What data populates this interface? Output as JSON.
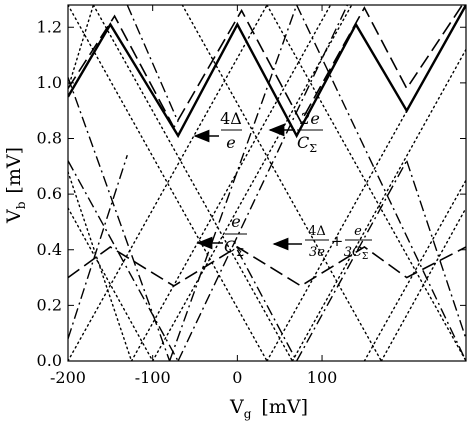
{
  "chart_data": {
    "type": "line",
    "xlabel": {
      "main": "V",
      "sub": "g",
      "unit": "[mV]"
    },
    "ylabel": {
      "main": "V",
      "sub": "b",
      "unit": "[mV]"
    },
    "xlim": [
      -200,
      270
    ],
    "ylim": [
      0.0,
      1.28
    ],
    "xticks": [
      -200,
      -100,
      0,
      100
    ],
    "xtick_labels": [
      "-200",
      "-100",
      "0",
      "100"
    ],
    "yticks": [
      0.0,
      0.2,
      0.4,
      0.6,
      0.8,
      1.0,
      1.2
    ],
    "ytick_labels": [
      "0.0",
      "0.2",
      "0.4",
      "0.6",
      "0.8",
      "1.0",
      "1.2"
    ],
    "grid": false,
    "series": [
      {
        "style": "solid",
        "color": "#000000",
        "width": 2.4,
        "x": [
          -200,
          -150,
          -70,
          0,
          70,
          140,
          200,
          270
        ],
        "y": [
          0.95,
          1.21,
          0.81,
          1.21,
          0.81,
          1.21,
          0.9,
          1.28
        ]
      },
      {
        "style": "dashed",
        "color": "#000000",
        "width": 1.6,
        "x": [
          -200,
          -145,
          -75,
          5,
          75,
          150,
          200,
          270
        ],
        "y": [
          0.98,
          1.24,
          0.84,
          1.26,
          0.86,
          1.27,
          0.98,
          1.3
        ]
      },
      {
        "style": "dashed",
        "color": "#000000",
        "width": 1.6,
        "x": [
          -200,
          -150,
          -75,
          0,
          75,
          150,
          200,
          270
        ],
        "y": [
          0.3,
          0.41,
          0.27,
          0.41,
          0.27,
          0.41,
          0.3,
          0.41
        ]
      },
      {
        "style": "dashdot",
        "color": "#000000",
        "width": 1.4,
        "segments": [
          {
            "x": [
              -200,
              -130
            ],
            "y": [
              0.08,
              0.74
            ]
          },
          {
            "x": [
              -200,
              -70
            ],
            "y": [
              0.72,
              0.0
            ]
          },
          {
            "x": [
              -70,
              130
            ],
            "y": [
              0.0,
              1.28
            ]
          },
          {
            "x": [
              -130,
              -70
            ],
            "y": [
              1.28,
              0.86
            ]
          },
          {
            "x": [
              0,
              70
            ],
            "y": [
              0.4,
              0.0
            ]
          },
          {
            "x": [
              70,
              200
            ],
            "y": [
              0.0,
              0.72
            ]
          },
          {
            "x": [
              200,
              270
            ],
            "y": [
              0.72,
              0.08
            ]
          },
          {
            "x": [
              -200,
              -80
            ],
            "y": [
              1.02,
              0.0
            ]
          },
          {
            "x": [
              -80,
              70
            ],
            "y": [
              0.0,
              1.28
            ]
          },
          {
            "x": [
              70,
              270
            ],
            "y": [
              1.28,
              0.0
            ]
          }
        ]
      },
      {
        "style": "dotted",
        "color": "#000000",
        "width": 1.4,
        "segments": [
          {
            "x": [
              -200,
              -100
            ],
            "y": [
              0.55,
              0.0
            ]
          },
          {
            "x": [
              -100,
              135
            ],
            "y": [
              0.0,
              1.28
            ]
          },
          {
            "x": [
              -200,
              35
            ],
            "y": [
              1.28,
              0.0
            ]
          },
          {
            "x": [
              35,
              270
            ],
            "y": [
              0.0,
              1.28
            ]
          },
          {
            "x": [
              -200,
              -125
            ],
            "y": [
              0.68,
              0.0
            ]
          },
          {
            "x": [
              -125,
              110
            ],
            "y": [
              0.0,
              1.28
            ]
          },
          {
            "x": [
              -200,
              -170
            ],
            "y": [
              0.98,
              1.28
            ]
          },
          {
            "x": [
              -170,
              65
            ],
            "y": [
              1.28,
              0.0
            ]
          },
          {
            "x": [
              65,
              270
            ],
            "y": [
              0.0,
              1.12
            ]
          },
          {
            "x": [
              -65,
              170
            ],
            "y": [
              1.28,
              0.0
            ]
          },
          {
            "x": [
              170,
              270
            ],
            "y": [
              0.0,
              0.55
            ]
          },
          {
            "x": [
              -200,
              35
            ],
            "y": [
              0.0,
              1.28
            ]
          },
          {
            "x": [
              35,
              270
            ],
            "y": [
              1.28,
              0.0
            ]
          },
          {
            "x": [
              150,
              270
            ],
            "y": [
              0.0,
              0.65
            ]
          }
        ]
      }
    ],
    "annotations": [
      {
        "id": "ann1",
        "num": "4Δ",
        "den": "e"
      },
      {
        "id": "ann2",
        "num": "2e",
        "den": "C",
        "den_sub": "Σ"
      },
      {
        "id": "ann3",
        "num": "e",
        "den": "C",
        "den_sub": "Σ"
      },
      {
        "id": "ann4",
        "n1": "4Δ",
        "d1": "3e",
        "plus": "+",
        "n2": "e",
        "d2": "3C",
        "d2_sub": "Σ"
      }
    ]
  }
}
